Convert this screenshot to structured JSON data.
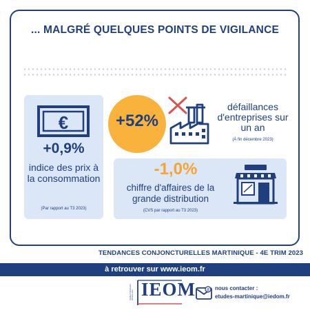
{
  "title": "... MALGRÉ QUELQUES POINTS DE VIGILANCE",
  "colors": {
    "navy": "#1f3f7f",
    "orange": "#f4a531",
    "circle": "#f9b33c",
    "card": "#dbe7f6",
    "red_cross": "#d9534f"
  },
  "prix": {
    "icon": "euro-banknote-icon",
    "value": "+0,9%",
    "label": "indice des prix à la consommation",
    "note": "(Par rapport au T3 2023)"
  },
  "defaillances": {
    "icon": "crossed-factory-icon",
    "value": "+52%",
    "label": "défaillances d'entreprises sur un an",
    "note": "(À fin décembre 2023)"
  },
  "chiffre_affaires": {
    "icon": "store-front-icon",
    "value": "-1,0%",
    "label": "chiffre d'affaires de la grande distribution",
    "note": "(CVS par rapport au T3 2023)"
  },
  "footer": {
    "tendances": "TENDANCES CONJONCTURELLES MARTINIQUE - 4E TRIM 2023",
    "band_prefix": "à retrouver sur ",
    "band_url": "www.ieom.fr",
    "logo": "IEOM",
    "logo_sub": "Institut d'émission d'Outre-mer",
    "contact_label": "nous contacter :",
    "contact_email": "etudes-martinique@iedom.fr"
  }
}
